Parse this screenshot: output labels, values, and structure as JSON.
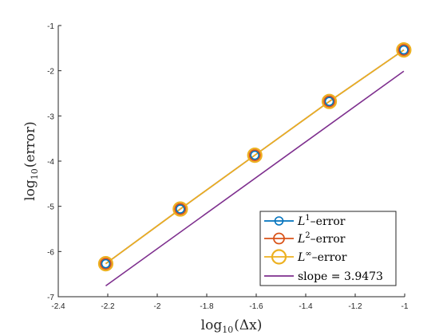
{
  "chart_data": {
    "type": "line",
    "xlabel_base": "log",
    "xlabel_sub": "10",
    "xlabel_arg": "(Δx)",
    "ylabel_base": "log",
    "ylabel_sub": "10",
    "ylabel_arg": "(error)",
    "xlim": [
      -2.4,
      -1
    ],
    "ylim": [
      -7,
      -1
    ],
    "xticks": [
      -2.4,
      -2.2,
      -2,
      -1.8,
      -1.6,
      -1.4,
      -1.2,
      -1
    ],
    "xtick_labels": [
      "-2.4",
      "-2.2",
      "-2",
      "-1.8",
      "-1.6",
      "-1.4",
      "-1.2",
      "-1"
    ],
    "yticks": [
      -7,
      -6,
      -5,
      -4,
      -3,
      -2,
      -1
    ],
    "ytick_labels": [
      "-7",
      "-6",
      "-5",
      "-4",
      "-3",
      "-2",
      "-1"
    ],
    "grid": false,
    "legend_position": "bottom-right",
    "series": [
      {
        "key": "l1",
        "name_base": "L",
        "name_sup": "1",
        "name_rest": "–error",
        "color": "#0072BD",
        "marker": "circle",
        "marker_size": "small",
        "x": [
          -2.2082,
          -1.9069,
          -1.6058,
          -1.3047,
          -1.0036
        ],
        "y": [
          -6.27,
          -5.06,
          -3.87,
          -2.68,
          -1.54
        ]
      },
      {
        "key": "l2",
        "name_base": "L",
        "name_sup": "2",
        "name_rest": "–error",
        "color": "#D95319",
        "marker": "circle",
        "marker_size": "medium",
        "x": [
          -2.2082,
          -1.9069,
          -1.6058,
          -1.3047,
          -1.0036
        ],
        "y": [
          -6.27,
          -5.06,
          -3.87,
          -2.68,
          -1.54
        ]
      },
      {
        "key": "linf",
        "name_base": "L",
        "name_sup": "∞",
        "name_rest": "–error",
        "color": "#EDB120",
        "marker": "circle",
        "marker_size": "large",
        "x": [
          -2.2082,
          -1.9069,
          -1.6058,
          -1.3047,
          -1.0036
        ],
        "y": [
          -6.27,
          -5.06,
          -3.87,
          -2.68,
          -1.54
        ]
      },
      {
        "key": "slope",
        "name_base": "slope = 3.9473",
        "name_sup": "",
        "name_rest": "",
        "color": "#7E2F8E",
        "marker": "none",
        "x": [
          -2.2082,
          -1.0036
        ],
        "y": [
          -6.76,
          -2.01
        ]
      }
    ]
  }
}
